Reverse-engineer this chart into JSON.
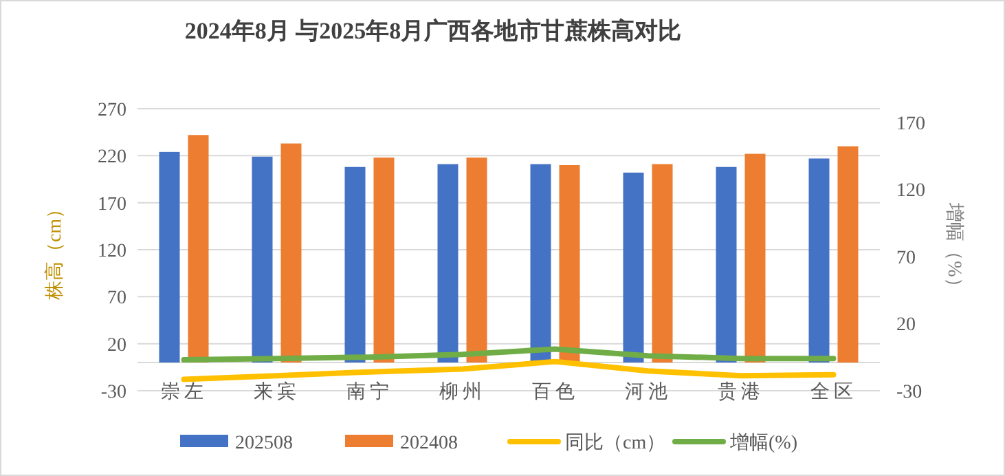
{
  "chart_data": {
    "type": "bar",
    "title": "2024年8月 与2025年8月广西各地市甘蔗株高对比",
    "ylabel": "株高（cm）",
    "y2label": "增幅（%）",
    "categories": [
      "崇左",
      "来宾",
      "南宁",
      "柳州",
      "百色",
      "河池",
      "贵港",
      "全区"
    ],
    "series": [
      {
        "name": "202508",
        "color": "#4472c4",
        "values": [
          224,
          219,
          208,
          211,
          211,
          202,
          208,
          217
        ]
      },
      {
        "name": "202408",
        "color": "#ed7d31",
        "values": [
          242,
          233,
          218,
          218,
          210,
          211,
          222,
          230
        ]
      },
      {
        "name": "同比（cm）",
        "type": "line",
        "color": "#ffc000",
        "values": [
          -18,
          -14,
          -10,
          -7,
          1,
          -9,
          -14,
          -13
        ]
      },
      {
        "name": "增幅(%)",
        "type": "line",
        "axis": "y2",
        "color": "#70ad47",
        "values": [
          -7,
          -6,
          -5,
          -3,
          1,
          -4,
          -6,
          -6
        ]
      }
    ],
    "ylim": [
      -30,
      270
    ],
    "yticks": [
      -30,
      20,
      70,
      120,
      170,
      220,
      270
    ],
    "y2lim": [
      -30,
      180
    ],
    "y2ticks": [
      -30,
      20,
      70,
      120,
      170
    ],
    "grid": "y",
    "legend": "bottom",
    "marker": "none",
    "line_style": "solid"
  }
}
